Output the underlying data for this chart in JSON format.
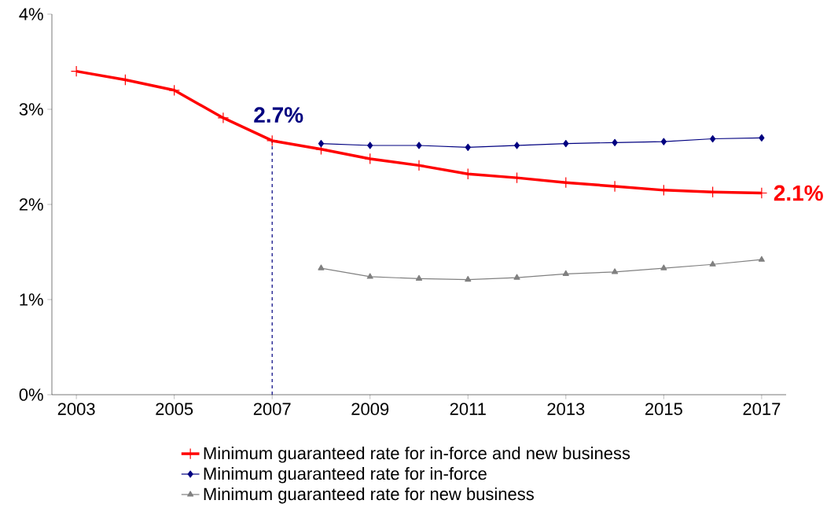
{
  "chart_data": {
    "type": "line",
    "x": [
      2003,
      2004,
      2005,
      2006,
      2007,
      2008,
      2009,
      2010,
      2011,
      2012,
      2013,
      2014,
      2015,
      2016,
      2017
    ],
    "series": [
      {
        "name": "Minimum guaranteed rate for in-force and new business",
        "color": "#ff0000",
        "marker": "cross",
        "values": [
          3.4,
          3.31,
          3.2,
          2.91,
          2.67,
          2.58,
          2.48,
          2.41,
          2.32,
          2.28,
          2.23,
          2.19,
          2.15,
          2.13,
          2.12
        ]
      },
      {
        "name": "Minimum guaranteed rate for in-force",
        "color": "#000080",
        "marker": "diamond",
        "values": [
          null,
          null,
          null,
          null,
          null,
          2.64,
          2.62,
          2.62,
          2.6,
          2.62,
          2.64,
          2.65,
          2.66,
          2.69,
          2.7
        ]
      },
      {
        "name": "Minimum guaranteed rate for new business",
        "color": "#808080",
        "marker": "triangle",
        "values": [
          null,
          null,
          null,
          null,
          null,
          1.33,
          1.24,
          1.22,
          1.21,
          1.23,
          1.27,
          1.29,
          1.33,
          1.37,
          1.42
        ]
      }
    ],
    "xlim": [
      2002.5,
      2017.5
    ],
    "xticks": [
      2003,
      2005,
      2007,
      2009,
      2011,
      2013,
      2015,
      2017
    ],
    "ylim": [
      0,
      4
    ],
    "yticks": [
      {
        "value": 0,
        "label": "0%"
      },
      {
        "value": 1,
        "label": "1%"
      },
      {
        "value": 2,
        "label": "2%"
      },
      {
        "value": 3,
        "label": "3%"
      },
      {
        "value": 4,
        "label": "4%"
      }
    ],
    "ref_lines": [
      {
        "axis": "x",
        "value": 2007,
        "color": "#000080",
        "line_style": "dashed"
      }
    ],
    "annotations": [
      {
        "text": "2.7%",
        "x": 2007,
        "y": 2.67
      },
      {
        "text": "2.1%",
        "x": 2017,
        "y": 2.12
      }
    ],
    "legend": "bottom",
    "grid": false
  }
}
